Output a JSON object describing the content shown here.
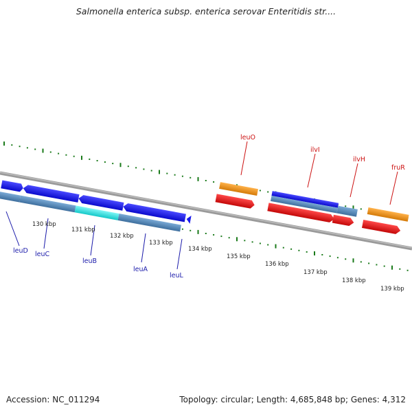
{
  "title": "Salmonella enterica subsp. enterica serovar Enteritidis str....",
  "footer": {
    "accession": "Accession: NC_011294",
    "summary": "Topology: circular; Length: 4,685,848 bp; Genes: 4,312"
  },
  "colors": {
    "backbone": "#8a8a8a",
    "tick": "#1a7a1a",
    "gene_blue": "#1a1aee",
    "gene_steel": "#5b8fbf",
    "gene_cyan": "#22e6e6",
    "gene_orange": "#f59a1a",
    "gene_red": "#ee1111",
    "label_blue": "#1a1aaa",
    "label_red": "#cc1111"
  },
  "scale_labels": [
    "130 kbp",
    "131 kbp",
    "132 kbp",
    "133 kbp",
    "134 kbp",
    "135 kbp",
    "136 kbp",
    "137 kbp",
    "138 kbp",
    "139 kbp"
  ],
  "gene_labels": {
    "blue": [
      "leuD",
      "leuC",
      "leuB",
      "leuA",
      "leuL"
    ],
    "red": [
      "leuO",
      "ilvI",
      "ilvH",
      "fruR"
    ]
  }
}
